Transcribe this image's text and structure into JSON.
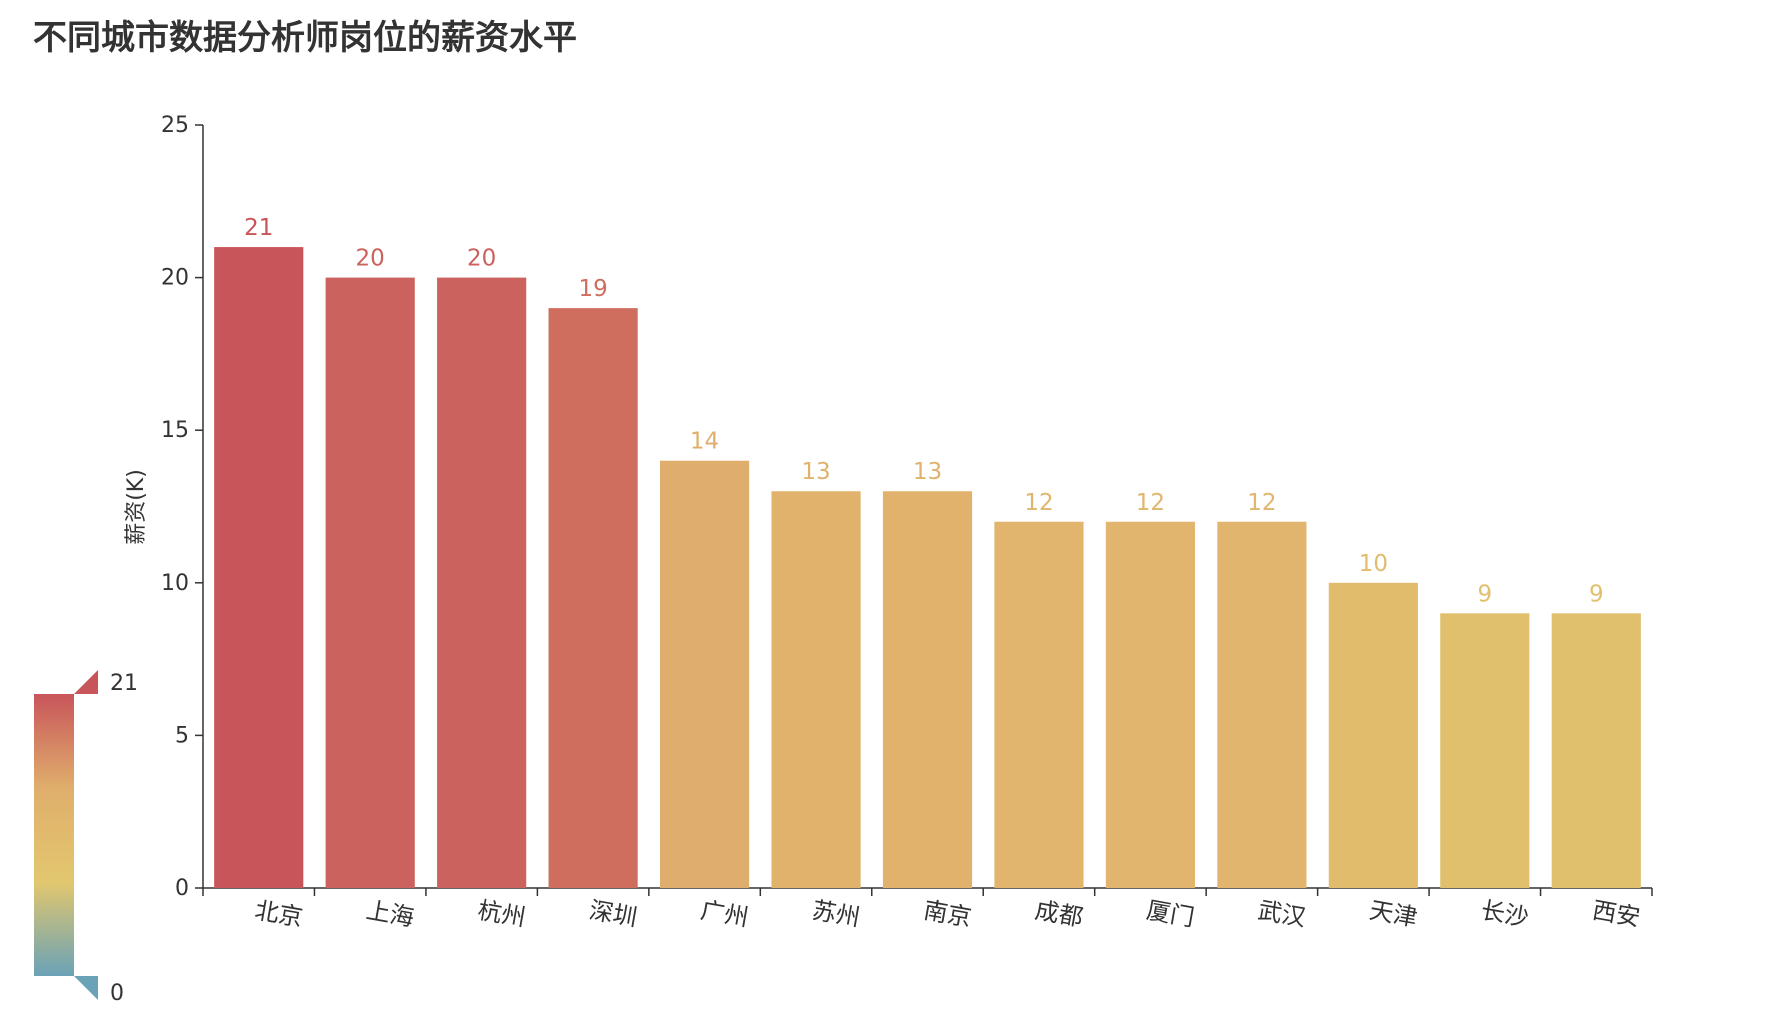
{
  "chart_data": {
    "type": "bar",
    "title": "不同城市数据分析师岗位的薪资水平",
    "xlabel": "",
    "ylabel": "薪资(K)",
    "categories": [
      "北京",
      "上海",
      "杭州",
      "深圳",
      "广州",
      "苏州",
      "南京",
      "成都",
      "厦门",
      "武汉",
      "天津",
      "长沙",
      "西安"
    ],
    "values": [
      21,
      20,
      20,
      19,
      14,
      13,
      13,
      12,
      12,
      12,
      10,
      9,
      9
    ],
    "ylim": [
      0,
      25
    ],
    "yticks": [
      0,
      5,
      10,
      15,
      20,
      25
    ],
    "grid": false,
    "legend": "none",
    "visual_map": {
      "min": 0,
      "max": 21,
      "min_label": "0",
      "max_label": "21",
      "placement": "bottom-left",
      "colors": [
        "#6aa2b7",
        "#e2c76e",
        "#e0ae6c",
        "#c8555a"
      ]
    }
  }
}
